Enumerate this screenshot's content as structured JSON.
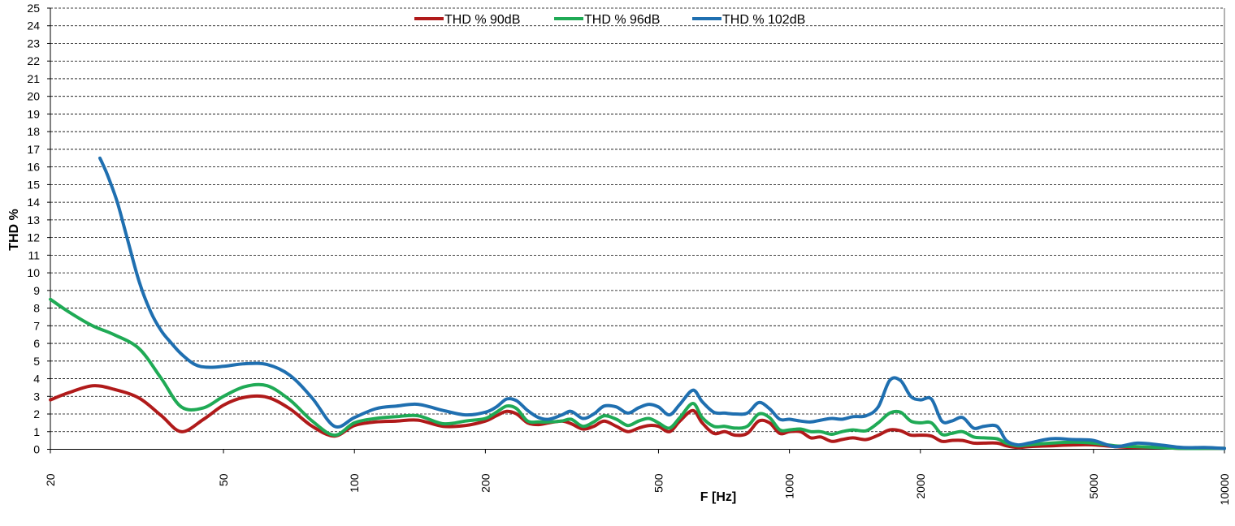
{
  "chart_data": {
    "type": "line",
    "title": "",
    "xlabel": "F [Hz]",
    "ylabel": "THD %",
    "x_scale": "log",
    "xlim": [
      20,
      10000
    ],
    "ylim": [
      0,
      25
    ],
    "x_ticks": [
      20,
      50,
      100,
      200,
      500,
      1000,
      2000,
      5000,
      10000
    ],
    "x_tick_labels": [
      "20",
      "50",
      "100",
      "200",
      "500",
      "1000",
      "2000",
      "5000",
      "10000"
    ],
    "y_ticks": [
      0,
      1,
      2,
      3,
      4,
      5,
      6,
      7,
      8,
      9,
      10,
      11,
      12,
      13,
      14,
      15,
      16,
      17,
      18,
      19,
      20,
      21,
      22,
      23,
      24,
      25
    ],
    "y_tick_labels": [
      "0",
      "1",
      "2",
      "3",
      "4",
      "5",
      "6",
      "7",
      "8",
      "9",
      "10",
      "11",
      "12",
      "13",
      "14",
      "15",
      "16",
      "17",
      "18",
      "19",
      "20",
      "21",
      "22",
      "23",
      "24",
      "25"
    ],
    "grid": "horizontal dashed",
    "legend_position": "top-center",
    "series": [
      {
        "name": "THD % 90dB",
        "color": "#b01a1a",
        "x": [
          20,
          22,
          25,
          28,
          32,
          36,
          40,
          45,
          50,
          56,
          63,
          71,
          80,
          90,
          100,
          112,
          125,
          140,
          160,
          180,
          200,
          212,
          224,
          236,
          250,
          265,
          280,
          300,
          315,
          335,
          355,
          375,
          400,
          425,
          450,
          475,
          500,
          530,
          560,
          600,
          630,
          670,
          710,
          750,
          800,
          850,
          900,
          950,
          1000,
          1060,
          1120,
          1180,
          1250,
          1320,
          1400,
          1500,
          1600,
          1700,
          1800,
          1900,
          2000,
          2120,
          2240,
          2360,
          2500,
          2650,
          2800,
          3000,
          3150,
          3350,
          3550,
          4000,
          4500,
          5000,
          5600,
          6300,
          7100,
          8000,
          9000,
          10000
        ],
        "values": [
          2.8,
          3.2,
          3.6,
          3.4,
          2.9,
          1.9,
          1.0,
          1.7,
          2.5,
          2.95,
          2.95,
          2.3,
          1.3,
          0.75,
          1.35,
          1.55,
          1.6,
          1.65,
          1.3,
          1.35,
          1.6,
          1.9,
          2.15,
          2.0,
          1.5,
          1.4,
          1.5,
          1.6,
          1.45,
          1.15,
          1.3,
          1.6,
          1.3,
          1.0,
          1.2,
          1.35,
          1.3,
          1.0,
          1.6,
          2.2,
          1.5,
          0.9,
          1.0,
          0.8,
          0.9,
          1.6,
          1.5,
          0.9,
          1.0,
          1.0,
          0.65,
          0.7,
          0.45,
          0.55,
          0.65,
          0.55,
          0.8,
          1.1,
          1.05,
          0.8,
          0.8,
          0.75,
          0.45,
          0.5,
          0.5,
          0.35,
          0.35,
          0.35,
          0.2,
          0.1,
          0.15,
          0.2,
          0.25,
          0.25,
          0.15,
          0.1,
          0.1,
          0.05,
          0.05,
          0.05
        ]
      },
      {
        "name": "THD % 96dB",
        "color": "#1faa55",
        "x": [
          20,
          22,
          25,
          28,
          32,
          36,
          40,
          45,
          50,
          56,
          63,
          71,
          80,
          90,
          100,
          112,
          125,
          140,
          160,
          180,
          200,
          212,
          224,
          236,
          250,
          265,
          280,
          300,
          315,
          335,
          355,
          375,
          400,
          425,
          450,
          475,
          500,
          530,
          560,
          600,
          630,
          670,
          710,
          750,
          800,
          850,
          900,
          950,
          1000,
          1060,
          1120,
          1180,
          1250,
          1320,
          1400,
          1500,
          1600,
          1700,
          1800,
          1900,
          2000,
          2120,
          2240,
          2360,
          2500,
          2650,
          2800,
          3000,
          3150,
          3350,
          3550,
          4000,
          4500,
          5000,
          5600,
          6300,
          7100,
          8000,
          9000,
          10000
        ],
        "values": [
          8.5,
          7.8,
          7.0,
          6.5,
          5.7,
          4.0,
          2.4,
          2.35,
          3.0,
          3.55,
          3.6,
          2.8,
          1.6,
          0.8,
          1.5,
          1.75,
          1.85,
          1.9,
          1.45,
          1.6,
          1.75,
          2.1,
          2.45,
          2.3,
          1.6,
          1.55,
          1.55,
          1.6,
          1.7,
          1.3,
          1.55,
          1.9,
          1.7,
          1.35,
          1.6,
          1.75,
          1.5,
          1.2,
          1.8,
          2.6,
          1.8,
          1.3,
          1.3,
          1.2,
          1.3,
          2.0,
          1.8,
          1.1,
          1.1,
          1.15,
          1.0,
          1.0,
          0.85,
          1.0,
          1.1,
          1.05,
          1.5,
          2.05,
          2.1,
          1.6,
          1.5,
          1.5,
          0.85,
          0.9,
          1.0,
          0.7,
          0.65,
          0.6,
          0.35,
          0.2,
          0.25,
          0.35,
          0.4,
          0.35,
          0.2,
          0.15,
          0.1,
          0.05,
          0.05,
          0.05
        ]
      },
      {
        "name": "THD % 102dB",
        "color": "#1f6fb0",
        "x": [
          26,
          27,
          28.5,
          30,
          32,
          34,
          36,
          38,
          40,
          43,
          46,
          50,
          56,
          63,
          71,
          80,
          90,
          100,
          112,
          125,
          140,
          160,
          180,
          200,
          212,
          224,
          236,
          250,
          265,
          280,
          300,
          315,
          335,
          355,
          375,
          400,
          425,
          450,
          475,
          500,
          530,
          560,
          600,
          630,
          670,
          710,
          750,
          800,
          850,
          900,
          950,
          1000,
          1060,
          1120,
          1180,
          1250,
          1320,
          1400,
          1500,
          1600,
          1700,
          1800,
          1900,
          2000,
          2120,
          2240,
          2360,
          2500,
          2650,
          2800,
          3000,
          3150,
          3350,
          3550,
          4000,
          4500,
          5000,
          5600,
          6300,
          7100,
          8000,
          9000,
          10000
        ],
        "values": [
          16.5,
          15.6,
          14.0,
          12.0,
          9.5,
          7.8,
          6.7,
          6.0,
          5.4,
          4.8,
          4.65,
          4.7,
          4.85,
          4.8,
          4.2,
          2.9,
          1.3,
          1.8,
          2.3,
          2.45,
          2.55,
          2.2,
          1.95,
          2.1,
          2.4,
          2.85,
          2.75,
          2.2,
          1.8,
          1.7,
          1.95,
          2.15,
          1.75,
          2.0,
          2.45,
          2.4,
          2.05,
          2.35,
          2.55,
          2.4,
          1.95,
          2.55,
          3.35,
          2.7,
          2.1,
          2.05,
          2.0,
          2.05,
          2.65,
          2.3,
          1.7,
          1.7,
          1.6,
          1.55,
          1.65,
          1.75,
          1.7,
          1.85,
          1.9,
          2.4,
          3.9,
          3.9,
          3.0,
          2.8,
          2.85,
          1.6,
          1.6,
          1.8,
          1.2,
          1.3,
          1.3,
          0.5,
          0.25,
          0.35,
          0.6,
          0.55,
          0.5,
          0.15,
          0.35,
          0.25,
          0.1,
          0.1,
          0.05
        ]
      }
    ]
  }
}
